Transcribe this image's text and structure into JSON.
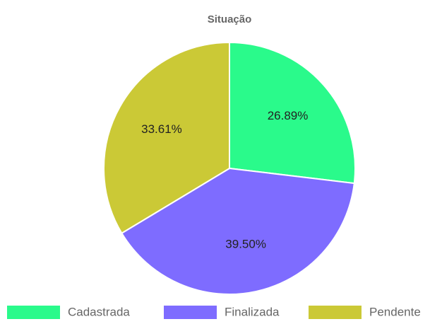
{
  "chart_data": {
    "type": "pie",
    "title": "Situação",
    "categories": [
      "Cadastrada",
      "Finalizada",
      "Pendente"
    ],
    "values": [
      26.89,
      39.5,
      33.61
    ],
    "value_labels": [
      "26.89%",
      "39.50%",
      "33.61%"
    ],
    "colors": [
      "#2afa8b",
      "#7e6cff",
      "#cbc936"
    ],
    "legend": "bottom"
  }
}
